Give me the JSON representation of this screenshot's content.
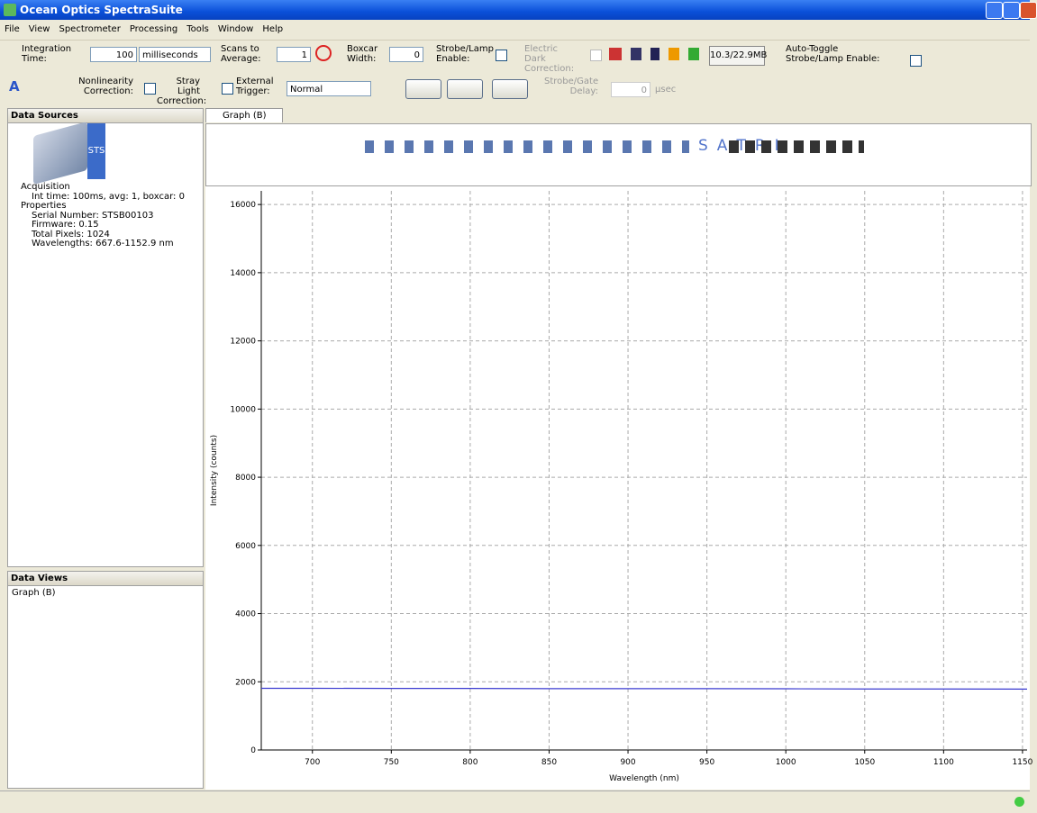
{
  "window": {
    "title": "Ocean Optics SpectraSuite"
  },
  "menu": [
    "File",
    "View",
    "Spectrometer",
    "Processing",
    "Tools",
    "Window",
    "Help"
  ],
  "toolbar": {
    "integration_time_label": "Integration Time:",
    "integration_time": "100",
    "integration_units": "milliseconds",
    "scans_label": "Scans to Average:",
    "scans": "1",
    "boxcar_label": "Boxcar Width:",
    "boxcar": "0",
    "strobe_label": "Strobe/Lamp Enable:",
    "dark_label": "Electric Dark Correction:",
    "memory": "10.3/22.9MB",
    "auto_toggle_label": "Auto-Toggle Strobe/Lamp Enable:",
    "nonlinearity_label": "Nonlinearity Correction:",
    "stray_label": "Stray Light Correction:",
    "trigger_label": "External Trigger:",
    "trigger_mode": "Normal",
    "gate_label": "Strobe/Gate Delay:",
    "gate": "0",
    "gate_units": "µsec"
  },
  "data_sources": {
    "title": "Data Sources",
    "device": "STS",
    "tree": [
      "Acquisition",
      "Int time: 100ms, avg: 1, boxcar: 0",
      "Properties",
      "Serial Number: STSB00103",
      "Firmware: 0.15",
      "Total Pixels: 1024",
      "Wavelengths: 667.6-1152.9 nm"
    ]
  },
  "data_views": {
    "title": "Data Views",
    "items": [
      "Graph (B)"
    ]
  },
  "tab": "Graph (B)",
  "graph_toolbar": [
    "S",
    "A",
    "T",
    "R",
    "I"
  ],
  "chart_data": {
    "type": "line",
    "xlabel": "Wavelength (nm)",
    "ylabel": "Intensity (counts)",
    "x": [
      667.6,
      700,
      750,
      800,
      850,
      900,
      950,
      1000,
      1050,
      1100,
      1152.9
    ],
    "values": [
      1810,
      1810,
      1805,
      1805,
      1800,
      1800,
      1800,
      1795,
      1790,
      1790,
      1785
    ],
    "color": "#3b3bd0",
    "xlim": [
      667.6,
      1152.9
    ],
    "xticks": [
      700,
      750,
      800,
      850,
      900,
      950,
      1000,
      1050,
      1100,
      1150
    ],
    "ylim": [
      0,
      16400
    ],
    "yticks": [
      0,
      2000,
      4000,
      6000,
      8000,
      10000,
      12000,
      14000,
      16000
    ],
    "grid": true
  }
}
